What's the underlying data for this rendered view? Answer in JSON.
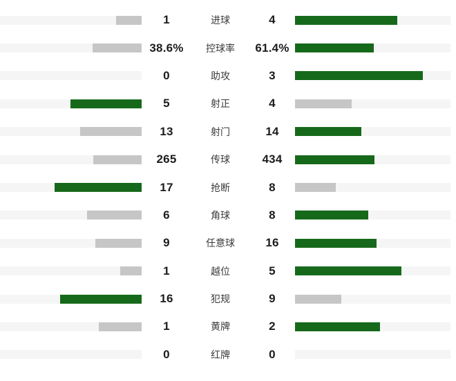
{
  "colors": {
    "leading_bar": "#16691a",
    "trailing_bar": "#c6c6c6",
    "bar_track": "#f5f5f6",
    "value_text": "#1c1c1e",
    "label_text": "#3a3a3c"
  },
  "chart_data": {
    "type": "bar",
    "orientation": "horizontal-paired-mirror",
    "title": "",
    "categories": [
      "进球",
      "控球率",
      "助攻",
      "射正",
      "射门",
      "传球",
      "抢断",
      "角球",
      "任意球",
      "越位",
      "犯规",
      "黄牌",
      "红牌"
    ],
    "series": [
      {
        "name": "home",
        "values": [
          1,
          38.6,
          0,
          5,
          13,
          265,
          17,
          6,
          9,
          1,
          16,
          1,
          0
        ]
      },
      {
        "name": "away",
        "values": [
          4,
          61.4,
          3,
          4,
          14,
          434,
          8,
          8,
          16,
          5,
          9,
          2,
          0
        ]
      }
    ],
    "normalization": "per-row: bar length = value / (home + away)",
    "highlight_rule": "larger value rendered green, smaller rendered gray",
    "grid": false,
    "legend": false
  },
  "rows": [
    {
      "label": "进球",
      "left": "1",
      "right": "4",
      "left_value": 1,
      "right_value": 4
    },
    {
      "label": "控球率",
      "left": "38.6%",
      "right": "61.4%",
      "left_value": 38.6,
      "right_value": 61.4
    },
    {
      "label": "助攻",
      "left": "0",
      "right": "3",
      "left_value": 0,
      "right_value": 3
    },
    {
      "label": "射正",
      "left": "5",
      "right": "4",
      "left_value": 5,
      "right_value": 4
    },
    {
      "label": "射门",
      "left": "13",
      "right": "14",
      "left_value": 13,
      "right_value": 14
    },
    {
      "label": "传球",
      "left": "265",
      "right": "434",
      "left_value": 265,
      "right_value": 434
    },
    {
      "label": "抢断",
      "left": "17",
      "right": "8",
      "left_value": 17,
      "right_value": 8
    },
    {
      "label": "角球",
      "left": "6",
      "right": "8",
      "left_value": 6,
      "right_value": 8
    },
    {
      "label": "任意球",
      "left": "9",
      "right": "16",
      "left_value": 9,
      "right_value": 16
    },
    {
      "label": "越位",
      "left": "1",
      "right": "5",
      "left_value": 1,
      "right_value": 5
    },
    {
      "label": "犯规",
      "left": "16",
      "right": "9",
      "left_value": 16,
      "right_value": 9
    },
    {
      "label": "黄牌",
      "left": "1",
      "right": "2",
      "left_value": 1,
      "right_value": 2
    },
    {
      "label": "红牌",
      "left": "0",
      "right": "0",
      "left_value": 0,
      "right_value": 0
    }
  ]
}
